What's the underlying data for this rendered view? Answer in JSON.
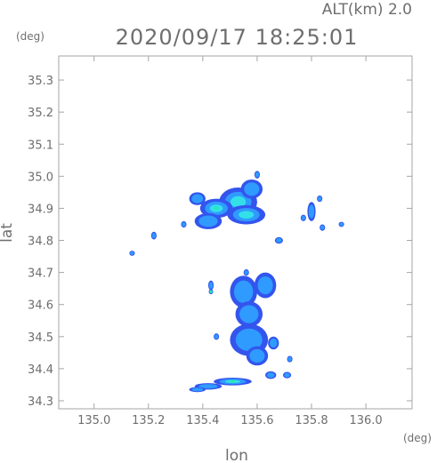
{
  "chart_data": {
    "type": "heatmap",
    "title": "2020/09/17 18:25:01",
    "altitude_label": "ALT(km) 2.0",
    "xlabel": "lon",
    "ylabel": "lat",
    "x_unit": "(deg)",
    "y_unit": "(deg)",
    "xlim": [
      134.87,
      136.17
    ],
    "ylim": [
      34.275,
      35.375
    ],
    "x_ticks": [
      135.0,
      135.2,
      135.4,
      135.6,
      135.8,
      136.0
    ],
    "y_ticks": [
      34.3,
      34.4,
      34.5,
      34.6,
      34.7,
      34.8,
      34.9,
      35.0,
      35.1,
      35.2,
      35.3
    ],
    "x_tick_labels": [
      "135.0",
      "135.2",
      "135.4",
      "135.6",
      "135.8",
      "136.0"
    ],
    "y_tick_labels": [
      "34.3",
      "34.4",
      "34.5",
      "34.6",
      "34.7",
      "34.8",
      "34.9",
      "35.0",
      "35.1",
      "35.2",
      "35.3"
    ],
    "grid": false,
    "colors": {
      "low": "#3355ee",
      "mid": "#2f9bff",
      "high": "#33e0e8",
      "peak": "#22ee99",
      "frame": "#a6a6a6"
    },
    "echo_regions": [
      {
        "lon": 135.53,
        "lat": 34.92,
        "rlon": 0.07,
        "rlat": 0.045,
        "level": 2
      },
      {
        "lon": 135.45,
        "lat": 34.9,
        "rlon": 0.06,
        "rlat": 0.03,
        "level": 3
      },
      {
        "lon": 135.56,
        "lat": 34.88,
        "rlon": 0.07,
        "rlat": 0.03,
        "level": 2
      },
      {
        "lon": 135.42,
        "lat": 34.86,
        "rlon": 0.05,
        "rlat": 0.025,
        "level": 1
      },
      {
        "lon": 135.38,
        "lat": 34.93,
        "rlon": 0.03,
        "rlat": 0.02,
        "level": 1
      },
      {
        "lon": 135.58,
        "lat": 34.96,
        "rlon": 0.04,
        "rlat": 0.03,
        "level": 1
      },
      {
        "lon": 135.6,
        "lat": 35.005,
        "rlon": 0.01,
        "rlat": 0.012,
        "level": 1
      },
      {
        "lon": 135.22,
        "lat": 34.815,
        "rlon": 0.01,
        "rlat": 0.012,
        "level": 1
      },
      {
        "lon": 135.33,
        "lat": 34.85,
        "rlon": 0.01,
        "rlat": 0.01,
        "level": 1
      },
      {
        "lon": 135.14,
        "lat": 34.76,
        "rlon": 0.01,
        "rlat": 0.008,
        "level": 1
      },
      {
        "lon": 135.8,
        "lat": 34.89,
        "rlon": 0.015,
        "rlat": 0.03,
        "level": 1
      },
      {
        "lon": 135.84,
        "lat": 34.84,
        "rlon": 0.01,
        "rlat": 0.01,
        "level": 1
      },
      {
        "lon": 135.77,
        "lat": 34.87,
        "rlon": 0.01,
        "rlat": 0.01,
        "level": 1
      },
      {
        "lon": 135.91,
        "lat": 34.85,
        "rlon": 0.01,
        "rlat": 0.008,
        "level": 1
      },
      {
        "lon": 135.68,
        "lat": 34.8,
        "rlon": 0.015,
        "rlat": 0.01,
        "level": 1
      },
      {
        "lon": 135.83,
        "lat": 34.93,
        "rlon": 0.01,
        "rlat": 0.01,
        "level": 1
      },
      {
        "lon": 135.55,
        "lat": 34.64,
        "rlon": 0.05,
        "rlat": 0.05,
        "level": 1
      },
      {
        "lon": 135.63,
        "lat": 34.66,
        "rlon": 0.04,
        "rlat": 0.04,
        "level": 1
      },
      {
        "lon": 135.57,
        "lat": 34.57,
        "rlon": 0.05,
        "rlat": 0.04,
        "level": 1
      },
      {
        "lon": 135.57,
        "lat": 34.49,
        "rlon": 0.07,
        "rlat": 0.05,
        "level": 1
      },
      {
        "lon": 135.6,
        "lat": 34.44,
        "rlon": 0.04,
        "rlat": 0.03,
        "level": 1
      },
      {
        "lon": 135.66,
        "lat": 34.48,
        "rlon": 0.02,
        "rlat": 0.02,
        "level": 1
      },
      {
        "lon": 135.45,
        "lat": 34.5,
        "rlon": 0.01,
        "rlat": 0.01,
        "level": 1
      },
      {
        "lon": 135.43,
        "lat": 34.66,
        "rlon": 0.01,
        "rlat": 0.015,
        "level": 1
      },
      {
        "lon": 135.43,
        "lat": 34.64,
        "rlon": 0.008,
        "rlat": 0.008,
        "level": 3
      },
      {
        "lon": 135.65,
        "lat": 34.38,
        "rlon": 0.02,
        "rlat": 0.012,
        "level": 1
      },
      {
        "lon": 135.71,
        "lat": 34.38,
        "rlon": 0.015,
        "rlat": 0.01,
        "level": 1
      },
      {
        "lon": 135.72,
        "lat": 34.43,
        "rlon": 0.01,
        "rlat": 0.01,
        "level": 1
      },
      {
        "lon": 135.56,
        "lat": 34.7,
        "rlon": 0.01,
        "rlat": 0.01,
        "level": 1
      },
      {
        "lon": 135.51,
        "lat": 34.36,
        "rlon": 0.07,
        "rlat": 0.012,
        "level": 3
      },
      {
        "lon": 135.42,
        "lat": 34.345,
        "rlon": 0.05,
        "rlat": 0.01,
        "level": 1
      },
      {
        "lon": 135.38,
        "lat": 34.335,
        "rlon": 0.03,
        "rlat": 0.008,
        "level": 1
      }
    ]
  }
}
